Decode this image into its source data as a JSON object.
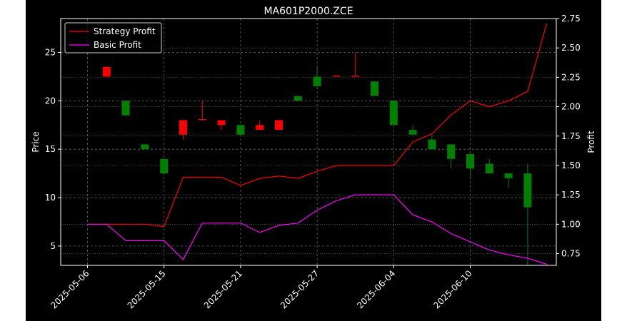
{
  "chart_data": {
    "type": "candlestick+line",
    "title": "MA601P2000.ZCE",
    "ylabel_left": "Price",
    "ylabel_right": "Profit",
    "ylim_left": [
      3,
      28.5
    ],
    "ylim_right": [
      0.65,
      2.75
    ],
    "yticks_left": [
      "5",
      "10",
      "15",
      "20",
      "25"
    ],
    "yticks_right": [
      "0.75",
      "1.00",
      "1.25",
      "1.50",
      "1.75",
      "2.00",
      "2.25",
      "2.50",
      "2.75"
    ],
    "xticks": [
      {
        "label": "2025-05-06",
        "i": 0
      },
      {
        "label": "2025-05-15",
        "i": 4
      },
      {
        "label": "2025-05-21",
        "i": 8
      },
      {
        "label": "2025-05-27",
        "i": 12
      },
      {
        "label": "2025-06-04",
        "i": 16
      },
      {
        "label": "2025-06-10",
        "i": 20
      }
    ],
    "grid": true,
    "legend_position": "upper-left",
    "colors": {
      "up": "#008000",
      "down": "#ff0000",
      "strategy": "#ff0000",
      "basic": "#ff00ff",
      "background": "#000000",
      "axes": "#ffffff",
      "grid": "#666666"
    },
    "candles": [
      {
        "i": 1,
        "open": 23.5,
        "close": 22.5,
        "high": 23.5,
        "low": 22.5
      },
      {
        "i": 2,
        "open": 18.5,
        "close": 20.0,
        "high": 20.0,
        "low": 18.5
      },
      {
        "i": 3,
        "open": 15.0,
        "close": 15.5,
        "high": 15.5,
        "low": 15.0
      },
      {
        "i": 4,
        "open": 12.5,
        "close": 14.0,
        "high": 14.0,
        "low": 12.5
      },
      {
        "i": 5,
        "open": 18.0,
        "close": 16.5,
        "high": 18.0,
        "low": 16.0
      },
      {
        "i": 6,
        "open": 18.1,
        "close": 18.0,
        "high": 20.0,
        "low": 18.0
      },
      {
        "i": 7,
        "open": 18.0,
        "close": 17.5,
        "high": 18.0,
        "low": 17.0
      },
      {
        "i": 8,
        "open": 16.5,
        "close": 17.5,
        "high": 17.5,
        "low": 16.3
      },
      {
        "i": 9,
        "open": 17.5,
        "close": 17.0,
        "high": 18.0,
        "low": 17.0
      },
      {
        "i": 10,
        "open": 18.0,
        "close": 17.0,
        "high": 18.0,
        "low": 17.0
      },
      {
        "i": 11,
        "open": 20.0,
        "close": 20.5,
        "high": 20.5,
        "low": 20.0
      },
      {
        "i": 12,
        "open": 21.5,
        "close": 22.5,
        "high": 23.5,
        "low": 21.5
      },
      {
        "i": 13,
        "open": 22.6,
        "close": 22.5,
        "high": 22.6,
        "low": 22.5
      },
      {
        "i": 14,
        "open": 22.6,
        "close": 22.5,
        "high": 25.0,
        "low": 22.5
      },
      {
        "i": 15,
        "open": 20.5,
        "close": 22.0,
        "high": 22.0,
        "low": 20.5
      },
      {
        "i": 16,
        "open": 17.5,
        "close": 20.0,
        "high": 20.0,
        "low": 17.5
      },
      {
        "i": 17,
        "open": 16.5,
        "close": 17.0,
        "high": 17.5,
        "low": 16.5
      },
      {
        "i": 18,
        "open": 15.0,
        "close": 16.0,
        "high": 16.5,
        "low": 15.0
      },
      {
        "i": 19,
        "open": 14.0,
        "close": 15.5,
        "high": 15.5,
        "low": 13.0
      },
      {
        "i": 20,
        "open": 13.0,
        "close": 14.5,
        "high": 14.5,
        "low": 12.0
      },
      {
        "i": 21,
        "open": 12.5,
        "close": 13.5,
        "high": 14.0,
        "low": 12.5
      },
      {
        "i": 22,
        "open": 12.0,
        "close": 12.5,
        "high": 12.5,
        "low": 11.0
      },
      {
        "i": 23,
        "open": 9.0,
        "close": 12.5,
        "high": 13.5,
        "low": 3.0
      }
    ],
    "series": [
      {
        "name": "Strategy Profit",
        "axis": "right",
        "values": [
          1.0,
          1.0,
          1.0,
          1.0,
          0.98,
          1.4,
          1.4,
          1.4,
          1.33,
          1.39,
          1.41,
          1.39,
          1.45,
          1.5,
          1.5,
          1.5,
          1.5,
          1.7,
          1.77,
          1.93,
          2.05,
          2.0,
          2.05,
          2.13,
          2.71
        ]
      },
      {
        "name": "Basic Profit",
        "axis": "right",
        "values": [
          1.0,
          1.0,
          0.86,
          0.86,
          0.86,
          0.7,
          1.01,
          1.01,
          1.01,
          0.93,
          0.99,
          1.01,
          1.12,
          1.2,
          1.25,
          1.25,
          1.25,
          1.08,
          1.02,
          0.92,
          0.85,
          0.78,
          0.74,
          0.71,
          0.66
        ]
      }
    ]
  }
}
